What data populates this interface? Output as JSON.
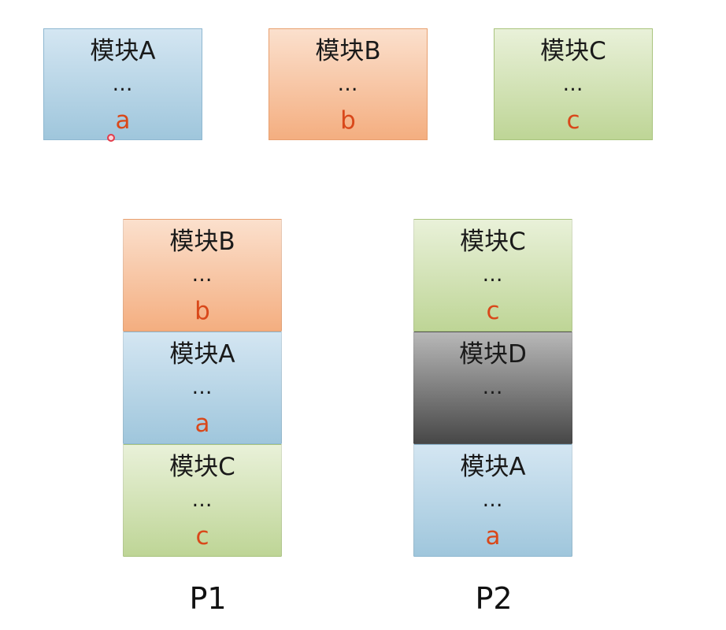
{
  "top_row": [
    {
      "title": "模块A",
      "dots": "…",
      "var": "a",
      "color": "blue"
    },
    {
      "title": "模块B",
      "dots": "…",
      "var": "b",
      "color": "orange"
    },
    {
      "title": "模块C",
      "dots": "…",
      "var": "c",
      "color": "green"
    }
  ],
  "p1": {
    "label": "P1",
    "blocks": [
      {
        "title": "模块B",
        "dots": "…",
        "var": "b",
        "color": "orange"
      },
      {
        "title": "模块A",
        "dots": "…",
        "var": "a",
        "color": "blue"
      },
      {
        "title": "模块C",
        "dots": "…",
        "var": "c",
        "color": "green"
      }
    ]
  },
  "p2": {
    "label": "P2",
    "blocks": [
      {
        "title": "模块C",
        "dots": "…",
        "var": "c",
        "color": "green"
      },
      {
        "title": "模块D",
        "dots": "…",
        "var": "",
        "color": "gray"
      },
      {
        "title": "模块A",
        "dots": "…",
        "var": "a",
        "color": "blue"
      }
    ]
  },
  "colors": {
    "blue": "#a8cbe0",
    "orange": "#f6b88f",
    "green": "#c8dba4",
    "gray": "#5a5a5a",
    "var_text": "#d9481a"
  }
}
